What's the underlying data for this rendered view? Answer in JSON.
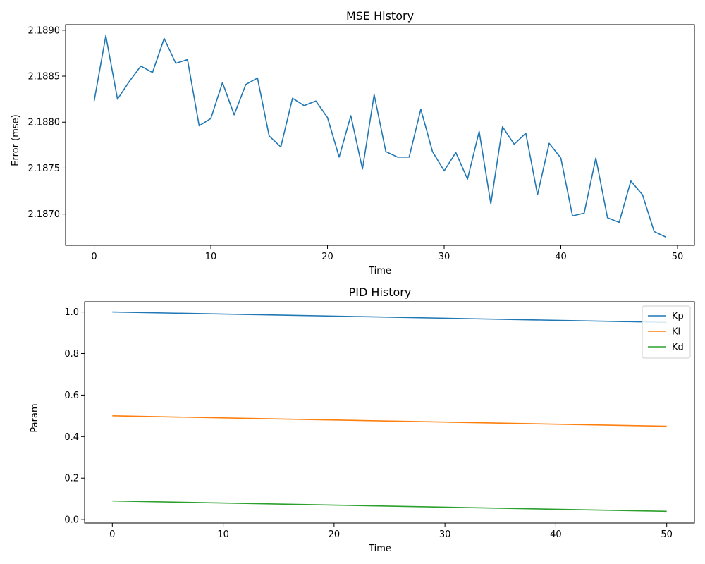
{
  "chart_data": [
    {
      "type": "line",
      "title": "MSE History",
      "xlabel": "Time",
      "ylabel": "Error (mse)",
      "xlim": [
        -2.45,
        51.45
      ],
      "ylim": [
        2.18666,
        2.18906
      ],
      "xticks": [
        0,
        10,
        20,
        30,
        40,
        50
      ],
      "yticks": [
        2.187,
        2.1875,
        2.188,
        2.1885,
        2.189
      ],
      "ytick_labels": [
        "2.1870",
        "2.1875",
        "2.1880",
        "2.1885",
        "2.1890"
      ],
      "grid": false,
      "colors": {
        "series": "#1f77b4"
      },
      "series": [
        {
          "x": [
            0,
            1,
            2,
            3,
            4,
            5,
            6,
            7,
            8,
            9,
            10,
            11,
            12,
            13,
            14,
            15,
            16,
            17,
            18,
            19,
            20,
            21,
            22,
            23,
            24,
            25,
            26,
            27,
            28,
            29,
            30,
            31,
            32,
            33,
            34,
            35,
            36,
            37,
            38,
            39,
            40,
            41,
            42,
            43,
            44,
            45,
            46,
            47,
            48,
            49
          ],
          "values": [
            2.18823,
            2.18894,
            2.18825,
            2.18844,
            2.18861,
            2.18854,
            2.18891,
            2.18864,
            2.18868,
            2.18796,
            2.18804,
            2.18843,
            2.18808,
            2.18841,
            2.18848,
            2.18785,
            2.18773,
            2.18826,
            2.18818,
            2.18823,
            2.18805,
            2.18762,
            2.18807,
            2.18749,
            2.1883,
            2.18768,
            2.18762,
            2.18762,
            2.18814,
            2.18768,
            2.18747,
            2.18767,
            2.18738,
            2.1879,
            2.18711,
            2.18795,
            2.18776,
            2.18788,
            2.18721,
            2.18777,
            2.18761,
            2.18698,
            2.18701,
            2.18761,
            2.18696,
            2.18691,
            2.18736,
            2.18721,
            2.18681,
            2.18675
          ]
        }
      ]
    },
    {
      "type": "line",
      "title": "PID History",
      "xlabel": "Time",
      "ylabel": "Param",
      "xlim": [
        -2.5,
        52.5
      ],
      "ylim": [
        -0.0165,
        1.0495
      ],
      "xticks": [
        0,
        10,
        20,
        30,
        40,
        50
      ],
      "yticks": [
        0.0,
        0.2,
        0.4,
        0.6,
        0.8,
        1.0
      ],
      "ytick_labels": [
        "0.0",
        "0.2",
        "0.4",
        "0.6",
        "0.8",
        "1.0"
      ],
      "grid": false,
      "legend": "top-right",
      "series": [
        {
          "name": "Kp",
          "color": "#1f77b4",
          "x": [
            0,
            50
          ],
          "values": [
            1.0,
            0.95
          ]
        },
        {
          "name": "Ki",
          "color": "#ff7f0e",
          "x": [
            0,
            50
          ],
          "values": [
            0.5,
            0.45
          ]
        },
        {
          "name": "Kd",
          "color": "#2ca02c",
          "x": [
            0,
            50
          ],
          "values": [
            0.09,
            0.04
          ]
        }
      ]
    }
  ]
}
